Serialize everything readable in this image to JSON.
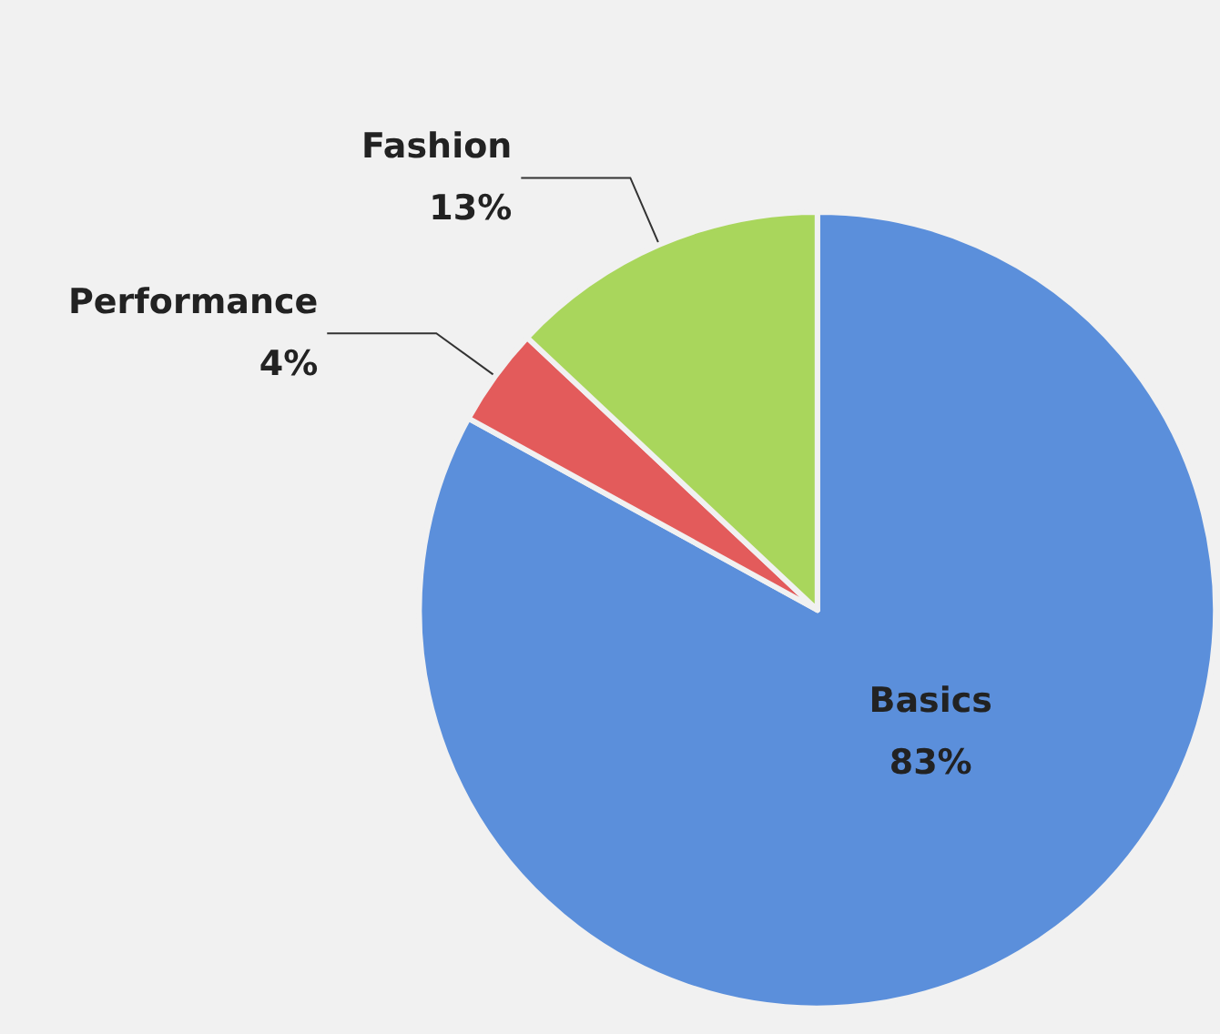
{
  "chart_data": {
    "type": "pie",
    "categories": [
      "Basics",
      "Performance",
      "Fashion"
    ],
    "values": [
      83,
      4,
      13
    ],
    "colors": [
      "#5b8fdb",
      "#e35b5b",
      "#a9d65c"
    ],
    "value_labels": [
      "83%",
      "4%",
      "13%"
    ]
  }
}
